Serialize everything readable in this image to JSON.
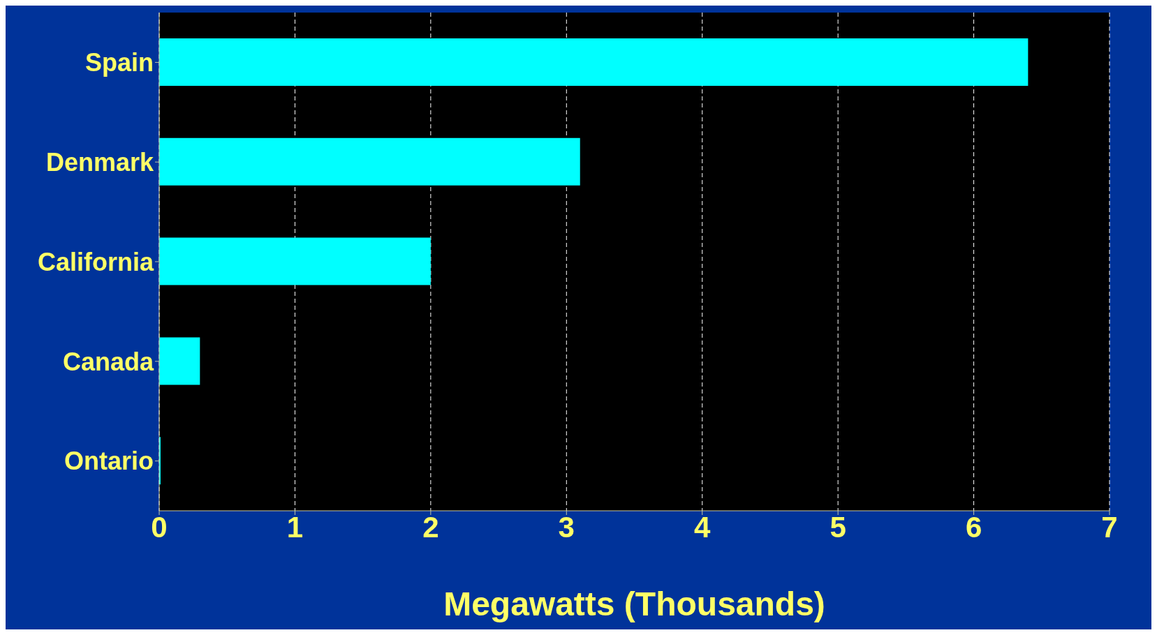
{
  "chart_data": {
    "type": "bar",
    "orientation": "horizontal",
    "categories": [
      "Spain",
      "Denmark",
      "California",
      "Canada",
      "Ontario"
    ],
    "values": [
      6.4,
      3.1,
      2.0,
      0.3,
      0.01
    ],
    "color": "#00ffff",
    "xlabel": "Megawatts (Thousands)",
    "xlim": [
      0,
      7
    ],
    "xticks": [
      0,
      1,
      2,
      3,
      4,
      5,
      6,
      7
    ],
    "grid": "x",
    "legend": false
  }
}
